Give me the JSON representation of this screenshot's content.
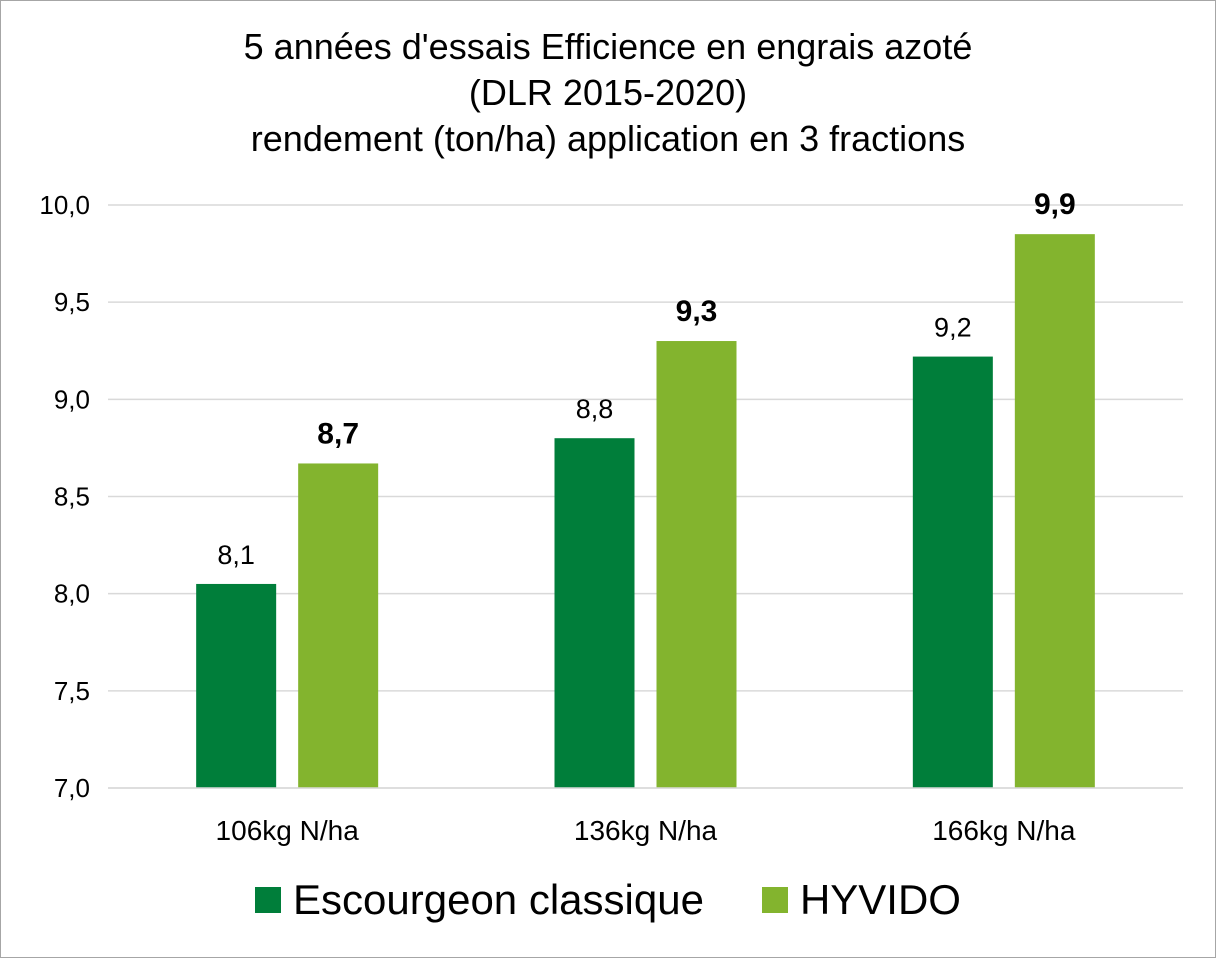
{
  "chart_data": {
    "type": "bar",
    "title_lines": [
      "5 années d'essais Efficience en engrais azoté",
      "(DLR 2015-2020)",
      "rendement (ton/ha) application en 3 fractions"
    ],
    "categories": [
      "106kg N/ha",
      "136kg N/ha",
      "166kg N/ha"
    ],
    "series": [
      {
        "name": "Escourgeon classique",
        "color": "#007e3a",
        "values": [
          8.05,
          8.8,
          9.22
        ],
        "labels": [
          "8,1",
          "8,8",
          "9,2"
        ],
        "label_bold": false
      },
      {
        "name": "HYVIDO",
        "color": "#83b42e",
        "values": [
          8.67,
          9.3,
          9.85
        ],
        "labels": [
          "8,7",
          "9,3",
          "9,9"
        ],
        "label_bold": true
      }
    ],
    "ylim": [
      7.0,
      10.0
    ],
    "yticks": [
      7.0,
      7.5,
      8.0,
      8.5,
      9.0,
      9.5,
      10.0
    ],
    "ytick_labels": [
      "7,0",
      "7,5",
      "8,0",
      "8,5",
      "9,0",
      "9,5",
      "10,0"
    ],
    "grid": true,
    "legend_position": "bottom",
    "xlabel": "",
    "ylabel": ""
  }
}
